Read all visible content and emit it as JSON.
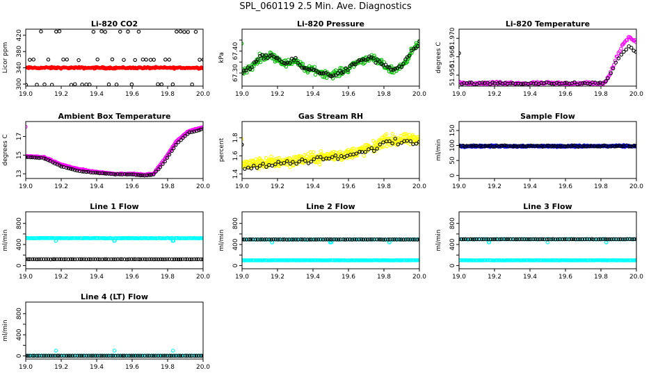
{
  "page": {
    "title": "SPL_060119  2.5 Min. Ave. Diagnostics"
  },
  "colors": {
    "black": "#000000",
    "red": "#ff0000",
    "green": "#00c000",
    "magenta": "#ff00ff",
    "yellow": "#ffff00",
    "blue": "#0000ff",
    "cyan": "#00ffff"
  },
  "chart_data": [
    {
      "type": "scatter",
      "title": "Li-820 CO2",
      "ylabel": "Licor ppm",
      "xlim": [
        19.0,
        20.0
      ],
      "ylim": [
        295,
        435
      ],
      "yticks": [
        300,
        340,
        380,
        420
      ],
      "yticklabels": [
        "300",
        "340",
        "380",
        "420"
      ],
      "xticks": [
        19.0,
        19.2,
        19.4,
        19.6,
        19.8,
        20.0
      ],
      "xticklabels": [
        "19.0",
        "19.2",
        "19.4",
        "19.6",
        "19.8",
        "20.0"
      ],
      "series": [
        {
          "name": "CO2 (red)",
          "color": "red",
          "marker": "dot",
          "fn": "flat",
          "params": {
            "v": 340,
            "noise": 3,
            "n": 200
          }
        },
        {
          "name": "CO2 (black)",
          "color": "black",
          "marker": "ring",
          "fn": "co2_rings",
          "params": {
            "levels": [
              299,
              360,
              429
            ],
            "n": 48
          }
        }
      ]
    },
    {
      "type": "scatter",
      "title": "Li-820 Pressure",
      "ylabel": "kPa",
      "xlim": [
        19.0,
        20.0
      ],
      "ylim": [
        67.24,
        67.5
      ],
      "yticks": [
        67.3,
        67.35,
        67.4,
        67.45
      ],
      "yticklabels": [
        "67.30",
        "",
        "67.40",
        ""
      ],
      "xticks": [
        19.0,
        19.2,
        19.4,
        19.6,
        19.8,
        20.0
      ],
      "xticklabels": [
        "19.0",
        "19.2",
        "19.4",
        "19.6",
        "19.8",
        "20.0"
      ],
      "series": [
        {
          "name": "Pressure (green)",
          "color": "green",
          "marker": "ring",
          "fn": "interp",
          "params": {
            "noise": 0.025,
            "n": 260,
            "knots": [
              [
                19.0,
                67.31
              ],
              [
                19.05,
                67.32
              ],
              [
                19.1,
                67.37
              ],
              [
                19.17,
                67.38
              ],
              [
                19.25,
                67.34
              ],
              [
                19.3,
                67.36
              ],
              [
                19.35,
                67.32
              ],
              [
                19.42,
                67.31
              ],
              [
                19.5,
                67.29
              ],
              [
                19.58,
                67.31
              ],
              [
                19.65,
                67.35
              ],
              [
                19.72,
                67.37
              ],
              [
                19.77,
                67.35
              ],
              [
                19.85,
                67.31
              ],
              [
                19.9,
                67.33
              ],
              [
                19.95,
                67.39
              ],
              [
                20.0,
                67.44
              ]
            ]
          }
        },
        {
          "name": "Pressure (black)",
          "color": "black",
          "marker": "ring",
          "fn": "interp",
          "params": {
            "noise": 0.015,
            "n": 90,
            "knots": [
              [
                19.0,
                67.31
              ],
              [
                19.05,
                67.32
              ],
              [
                19.1,
                67.37
              ],
              [
                19.17,
                67.38
              ],
              [
                19.25,
                67.34
              ],
              [
                19.3,
                67.36
              ],
              [
                19.35,
                67.32
              ],
              [
                19.42,
                67.31
              ],
              [
                19.5,
                67.29
              ],
              [
                19.58,
                67.31
              ],
              [
                19.65,
                67.35
              ],
              [
                19.72,
                67.37
              ],
              [
                19.77,
                67.35
              ],
              [
                19.85,
                67.31
              ],
              [
                19.9,
                67.33
              ],
              [
                19.95,
                67.39
              ],
              [
                20.0,
                67.44
              ]
            ]
          }
        }
      ]
    },
    {
      "type": "scatter",
      "title": "Li-820 Temperature",
      "ylabel": "degrees C",
      "xlim": [
        19.0,
        20.0
      ],
      "ylim": [
        51.944,
        51.975
      ],
      "yticks": [
        51.95,
        51.96,
        51.97
      ],
      "yticklabels": [
        "51.950",
        "51.960",
        "51.970"
      ],
      "xticks": [
        19.0,
        19.2,
        19.4,
        19.6,
        19.8,
        20.0
      ],
      "xticklabels": [
        "19.0",
        "19.2",
        "19.4",
        "19.6",
        "19.8",
        "20.0"
      ],
      "series": [
        {
          "name": "Temperature (magenta)",
          "color": "magenta",
          "marker": "ring",
          "fn": "interp",
          "params": {
            "noise": 0.0012,
            "n": 160,
            "knots": [
              [
                19.0,
                51.9455
              ],
              [
                19.82,
                51.9455
              ],
              [
                19.85,
                51.95
              ],
              [
                19.88,
                51.958
              ],
              [
                19.92,
                51.966
              ],
              [
                19.96,
                51.971
              ],
              [
                20.0,
                51.968
              ]
            ]
          }
        },
        {
          "name": "Temperature (black)",
          "color": "black",
          "marker": "ring",
          "fn": "interp",
          "params": {
            "noise": 0.0008,
            "n": 70,
            "knots": [
              [
                19.0,
                51.9455
              ],
              [
                19.82,
                51.9455
              ],
              [
                19.85,
                51.95
              ],
              [
                19.88,
                51.956
              ],
              [
                19.92,
                51.962
              ],
              [
                19.96,
                51.966
              ],
              [
                20.0,
                51.962
              ]
            ]
          }
        }
      ]
    },
    {
      "type": "scatter",
      "title": "Ambient Box Temperature",
      "ylabel": "degrees C",
      "xlim": [
        19.0,
        20.0
      ],
      "ylim": [
        12.5,
        18.6
      ],
      "yticks": [
        13,
        15,
        17
      ],
      "yticklabels": [
        "13",
        "15",
        "17"
      ],
      "xticks": [
        19.0,
        19.2,
        19.4,
        19.6,
        19.8,
        20.0
      ],
      "xticklabels": [
        "19.0",
        "19.2",
        "19.4",
        "19.6",
        "19.8",
        "20.0"
      ],
      "series": [
        {
          "name": "Ambient (magenta)",
          "color": "magenta",
          "marker": "ring",
          "fn": "interp",
          "params": {
            "noise": 0.08,
            "n": 230,
            "knots": [
              [
                19.0,
                14.9
              ],
              [
                19.1,
                14.8
              ],
              [
                19.2,
                14.0
              ],
              [
                19.3,
                13.5
              ],
              [
                19.4,
                13.2
              ],
              [
                19.5,
                13.0
              ],
              [
                19.6,
                13.0
              ],
              [
                19.67,
                12.9
              ],
              [
                19.72,
                13.0
              ],
              [
                19.78,
                14.5
              ],
              [
                19.85,
                16.5
              ],
              [
                19.92,
                17.6
              ],
              [
                20.0,
                18.0
              ]
            ]
          }
        },
        {
          "name": "Ambient (black)",
          "color": "black",
          "marker": "ring",
          "fn": "interp",
          "params": {
            "noise": 0.05,
            "n": 80,
            "knots": [
              [
                19.0,
                14.8
              ],
              [
                19.1,
                14.7
              ],
              [
                19.2,
                13.8
              ],
              [
                19.3,
                13.3
              ],
              [
                19.4,
                13.1
              ],
              [
                19.5,
                12.95
              ],
              [
                19.6,
                12.95
              ],
              [
                19.67,
                12.8
              ],
              [
                19.72,
                12.9
              ],
              [
                19.78,
                14.2
              ],
              [
                19.85,
                16.2
              ],
              [
                19.92,
                17.4
              ],
              [
                20.0,
                17.8
              ]
            ]
          }
        }
      ]
    },
    {
      "type": "scatter",
      "title": "Gas Stream RH",
      "ylabel": "percent",
      "xlim": [
        19.0,
        20.0
      ],
      "ylim": [
        1.35,
        1.98
      ],
      "yticks": [
        1.4,
        1.6,
        1.8
      ],
      "yticklabels": [
        "1.4",
        "1.6",
        "1.8"
      ],
      "xticks": [
        19.0,
        19.2,
        19.4,
        19.6,
        19.8,
        20.0
      ],
      "xticklabels": [
        "19.0",
        "19.2",
        "19.4",
        "19.6",
        "19.8",
        "20.0"
      ],
      "series": [
        {
          "name": "RH (yellow)",
          "color": "yellow",
          "marker": "ring",
          "fn": "interp",
          "params": {
            "noise": 0.09,
            "n": 420,
            "knots": [
              [
                19.0,
                1.5
              ],
              [
                19.3,
                1.55
              ],
              [
                19.6,
                1.62
              ],
              [
                19.75,
                1.7
              ],
              [
                19.8,
                1.77
              ],
              [
                20.0,
                1.78
              ]
            ]
          }
        },
        {
          "name": "RH (black)",
          "color": "black",
          "marker": "ring",
          "fn": "interp",
          "params": {
            "noise": 0.05,
            "n": 60,
            "knots": [
              [
                19.0,
                1.47
              ],
              [
                19.3,
                1.53
              ],
              [
                19.6,
                1.6
              ],
              [
                19.75,
                1.68
              ],
              [
                19.8,
                1.75
              ],
              [
                20.0,
                1.76
              ]
            ]
          }
        }
      ]
    },
    {
      "type": "scatter",
      "title": "Sample Flow",
      "ylabel": "ml/min",
      "xlim": [
        19.0,
        20.0
      ],
      "ylim": [
        -10,
        180
      ],
      "yticks": [
        0,
        50,
        100,
        150
      ],
      "yticklabels": [
        "0",
        "50",
        "100",
        "150"
      ],
      "xticks": [
        19.0,
        19.2,
        19.4,
        19.6,
        19.8,
        20.0
      ],
      "xticklabels": [
        "19.0",
        "19.2",
        "19.4",
        "19.6",
        "19.8",
        "20.0"
      ],
      "series": [
        {
          "name": "Sample flow (blue)",
          "color": "blue",
          "marker": "ring",
          "fn": "flat",
          "params": {
            "v": 98,
            "noise": 4,
            "n": 260
          }
        },
        {
          "name": "Sample flow (black)",
          "color": "black",
          "marker": "ring",
          "fn": "flat",
          "params": {
            "v": 98,
            "noise": 3,
            "n": 90
          }
        }
      ]
    },
    {
      "type": "scatter",
      "title": "Line 1 Flow",
      "ylabel": "ml/min",
      "xlim": [
        19.0,
        20.0
      ],
      "ylim": [
        -60,
        1020
      ],
      "yticks": [
        0,
        200,
        400,
        600,
        800
      ],
      "yticklabels": [
        "0",
        "",
        "400",
        "",
        "800"
      ],
      "xticks": [
        19.0,
        19.2,
        19.4,
        19.6,
        19.8,
        20.0
      ],
      "xticklabels": [
        "19.0",
        "19.2",
        "19.4",
        "19.6",
        "19.8",
        "20.0"
      ],
      "series": [
        {
          "name": "Line 1 (cyan)",
          "color": "cyan",
          "marker": "ring",
          "fn": "flat",
          "params": {
            "v": 520,
            "noise": 8,
            "n": 200,
            "dips": [
              19.17,
              19.5,
              19.83
            ],
            "dipTo": 470
          }
        },
        {
          "name": "Line 1 (black)",
          "color": "black",
          "marker": "ring",
          "fn": "flat",
          "params": {
            "v": 120,
            "noise": 3,
            "n": 80
          }
        }
      ]
    },
    {
      "type": "scatter",
      "title": "Line 2 Flow",
      "ylabel": "ml/min",
      "xlim": [
        19.0,
        20.0
      ],
      "ylim": [
        -60,
        1020
      ],
      "yticks": [
        0,
        200,
        400,
        600,
        800
      ],
      "yticklabels": [
        "0",
        "",
        "400",
        "",
        "800"
      ],
      "xticks": [
        19.0,
        19.2,
        19.4,
        19.6,
        19.8,
        20.0
      ],
      "xticklabels": [
        "19.0",
        "19.2",
        "19.4",
        "19.6",
        "19.8",
        "20.0"
      ],
      "series": [
        {
          "name": "Line 2 (cyan high)",
          "color": "cyan",
          "marker": "ring",
          "fn": "flat",
          "params": {
            "v": 495,
            "noise": 6,
            "n": 120,
            "dips": [
              19.17,
              19.5,
              19.83
            ],
            "dipTo": 440
          }
        },
        {
          "name": "Line 2 (cyan low)",
          "color": "cyan",
          "marker": "ring",
          "fn": "flat",
          "params": {
            "v": 100,
            "noise": 4,
            "n": 200
          }
        },
        {
          "name": "Line 2 (black)",
          "color": "black",
          "marker": "ring",
          "fn": "flat",
          "params": {
            "v": 495,
            "noise": 3,
            "n": 80
          }
        }
      ]
    },
    {
      "type": "scatter",
      "title": "Line 3 Flow",
      "ylabel": "ml/min",
      "xlim": [
        19.0,
        20.0
      ],
      "ylim": [
        -60,
        1020
      ],
      "yticks": [
        0,
        200,
        400,
        600,
        800
      ],
      "yticklabels": [
        "0",
        "",
        "400",
        "",
        "800"
      ],
      "xticks": [
        19.0,
        19.2,
        19.4,
        19.6,
        19.8,
        20.0
      ],
      "xticklabels": [
        "19.0",
        "19.2",
        "19.4",
        "19.6",
        "19.8",
        "20.0"
      ],
      "series": [
        {
          "name": "Line 3 (cyan high)",
          "color": "cyan",
          "marker": "ring",
          "fn": "flat",
          "params": {
            "v": 500,
            "noise": 6,
            "n": 120,
            "dips": [
              19.17,
              19.5,
              19.83
            ],
            "dipTo": 440
          }
        },
        {
          "name": "Line 3 (cyan low)",
          "color": "cyan",
          "marker": "ring",
          "fn": "flat",
          "params": {
            "v": 100,
            "noise": 4,
            "n": 200
          }
        },
        {
          "name": "Line 3 (black)",
          "color": "black",
          "marker": "ring",
          "fn": "flat",
          "params": {
            "v": 500,
            "noise": 3,
            "n": 80
          }
        }
      ]
    },
    {
      "type": "scatter",
      "title": "Line 4 (LT) Flow",
      "ylabel": "ml/min",
      "xlim": [
        19.0,
        20.0
      ],
      "ylim": [
        -60,
        1020
      ],
      "yticks": [
        0,
        200,
        400,
        600,
        800
      ],
      "yticklabels": [
        "0",
        "",
        "400",
        "",
        "800"
      ],
      "xticks": [
        19.0,
        19.2,
        19.4,
        19.6,
        19.8,
        20.0
      ],
      "xticklabels": [
        "19.0",
        "19.2",
        "19.4",
        "19.6",
        "19.8",
        "20.0"
      ],
      "series": [
        {
          "name": "Line 4 (cyan)",
          "color": "cyan",
          "marker": "ring",
          "fn": "flat",
          "params": {
            "v": 2,
            "noise": 2,
            "n": 160,
            "spikes": [
              19.17,
              19.5,
              19.83
            ],
            "spikeTo": 100
          }
        },
        {
          "name": "Line 4 (black)",
          "color": "black",
          "marker": "ring",
          "fn": "flat",
          "params": {
            "v": 2,
            "noise": 1,
            "n": 80
          }
        }
      ]
    }
  ]
}
